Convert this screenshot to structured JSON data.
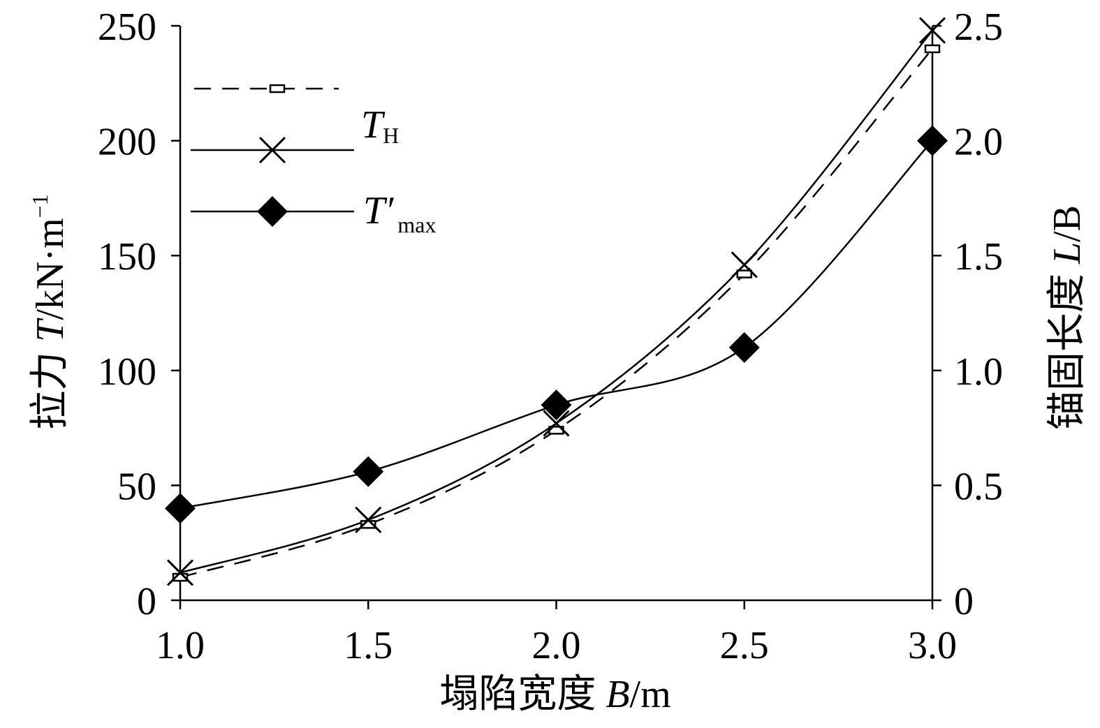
{
  "chart_data": {
    "type": "line",
    "x": [
      1.0,
      1.5,
      2.0,
      2.5,
      3.0
    ],
    "xlim": [
      1.0,
      3.0
    ],
    "ylim": [
      0,
      250
    ],
    "y2lim": [
      0,
      2.5
    ],
    "xticks": [
      "1.0",
      "1.5",
      "2.0",
      "2.5",
      "3.0"
    ],
    "yticks": [
      "0",
      "50",
      "100",
      "150",
      "200",
      "250"
    ],
    "y2ticks": [
      "0",
      "0.5",
      "1.0",
      "1.5",
      "2.0",
      "2.5"
    ],
    "xlabel": {
      "text": "塌陷宽度",
      "var": "B",
      "unit": "/m"
    },
    "ylabel": {
      "text": "拉力",
      "var": "T",
      "unit": "/kN·m",
      "exp": "−1"
    },
    "y2label": {
      "text": "锚固长度",
      "var": "L",
      "unit": "/B"
    },
    "grid": false,
    "legend": "top-left",
    "series": [
      {
        "name": "",
        "axis": "right",
        "line": "dashed",
        "marker": "rectangle",
        "values": [
          0.1,
          0.33,
          0.74,
          1.42,
          2.4
        ]
      },
      {
        "name": "T",
        "name_sub": "H",
        "axis": "left",
        "line": "solid",
        "marker": "x",
        "values": [
          12,
          35,
          77,
          146,
          248
        ]
      },
      {
        "name": "T′",
        "name_sub": "max",
        "axis": "left",
        "line": "solid",
        "marker": "diamond",
        "values": [
          40,
          56,
          85,
          110,
          200
        ]
      }
    ]
  },
  "colors": {
    "ink": "#000000",
    "background": "#ffffff"
  }
}
